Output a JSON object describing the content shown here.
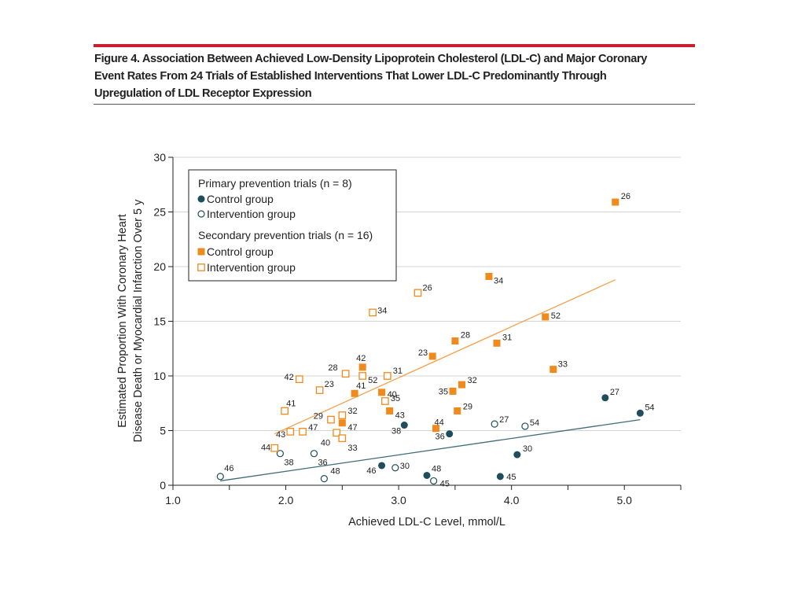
{
  "figure": {
    "caption_lines": [
      "Figure 4. Association Between Achieved Low-Density Lipoprotein Cholesterol (LDL-C) and Major Coronary",
      "Event Rates From 24 Trials of Established Interventions That Lower LDL-C Predominantly Through",
      "Upregulation of LDL Receptor Expression"
    ],
    "accent_color": "#c8202f"
  },
  "chart_data": {
    "type": "scatter",
    "xlabel": "Achieved LDL-C Level, mmol/L",
    "ylabel_lines": [
      "Estimated Proportion With Coronary Heart",
      "Disease Death or Myocardial Infarction Over 5 y"
    ],
    "xlim": [
      1.0,
      5.5
    ],
    "ylim": [
      0,
      30
    ],
    "x_ticks": [
      1.0,
      2.0,
      3.0,
      4.0,
      5.0
    ],
    "x_tick_labels": [
      "1.0",
      "2.0",
      "3.0",
      "4.0",
      "5.0"
    ],
    "y_ticks": [
      0,
      5,
      10,
      15,
      20,
      25,
      30
    ],
    "y_tick_labels": [
      "0",
      "5",
      "10",
      "15",
      "20",
      "25",
      "30"
    ],
    "grid": "horizontal",
    "legend": {
      "placement": "top-left",
      "groups": [
        {
          "title": "Primary prevention trials (n = 8)",
          "items": [
            "Control group",
            "Intervention group"
          ]
        },
        {
          "title": "Secondary prevention trials (n = 16)",
          "items": [
            "Control group",
            "Intervention group"
          ]
        }
      ]
    },
    "colors": {
      "primary": "#1e4e5c",
      "secondary": "#f08a1c",
      "primary_line": "#3d6b78",
      "secondary_line": "#f5a04a"
    },
    "series": [
      {
        "name": "Primary prevention trials - Control group",
        "marker": "filled-circle",
        "points": [
          {
            "x": 2.85,
            "y": 1.8,
            "label": "46"
          },
          {
            "x": 3.05,
            "y": 5.5,
            "label": "38"
          },
          {
            "x": 3.45,
            "y": 4.7,
            "label": "36"
          },
          {
            "x": 3.25,
            "y": 0.9,
            "label": "48"
          },
          {
            "x": 3.9,
            "y": 0.8,
            "label": "45"
          },
          {
            "x": 4.05,
            "y": 2.8,
            "label": "30"
          },
          {
            "x": 4.83,
            "y": 8.0,
            "label": "27"
          },
          {
            "x": 5.14,
            "y": 6.6,
            "label": "54"
          }
        ]
      },
      {
        "name": "Primary prevention trials - Intervention group",
        "marker": "open-circle",
        "points": [
          {
            "x": 1.42,
            "y": 0.8,
            "label": "46"
          },
          {
            "x": 1.95,
            "y": 2.9,
            "label": "38"
          },
          {
            "x": 2.25,
            "y": 2.9,
            "label": "36"
          },
          {
            "x": 2.34,
            "y": 0.6,
            "label": "48"
          },
          {
            "x": 2.97,
            "y": 1.6,
            "label": "30"
          },
          {
            "x": 3.31,
            "y": 0.4,
            "label": "45"
          },
          {
            "x": 3.85,
            "y": 5.6,
            "label": "27"
          },
          {
            "x": 4.12,
            "y": 5.4,
            "label": "54"
          }
        ]
      },
      {
        "name": "Secondary prevention trials - Control group",
        "marker": "filled-square",
        "points": [
          {
            "x": 4.92,
            "y": 25.9,
            "label": "26"
          },
          {
            "x": 3.8,
            "y": 19.1,
            "label": "34"
          },
          {
            "x": 4.3,
            "y": 15.4,
            "label": "52"
          },
          {
            "x": 3.5,
            "y": 13.2,
            "label": "28"
          },
          {
            "x": 3.87,
            "y": 13.0,
            "label": "31"
          },
          {
            "x": 3.3,
            "y": 11.8,
            "label": "23"
          },
          {
            "x": 2.68,
            "y": 10.8,
            "label": "42"
          },
          {
            "x": 4.37,
            "y": 10.6,
            "label": "33"
          },
          {
            "x": 3.56,
            "y": 9.2,
            "label": "32"
          },
          {
            "x": 3.48,
            "y": 8.6,
            "label": "35"
          },
          {
            "x": 2.85,
            "y": 8.5,
            "label": "40"
          },
          {
            "x": 2.61,
            "y": 8.4,
            "label": "41"
          },
          {
            "x": 2.92,
            "y": 6.8,
            "label": "43"
          },
          {
            "x": 3.52,
            "y": 6.8,
            "label": "29"
          },
          {
            "x": 2.5,
            "y": 5.7,
            "label": "47"
          },
          {
            "x": 3.33,
            "y": 5.2,
            "label": "44"
          }
        ]
      },
      {
        "name": "Secondary prevention trials - Intervention group",
        "marker": "open-square",
        "points": [
          {
            "x": 3.17,
            "y": 17.6,
            "label": "26"
          },
          {
            "x": 2.77,
            "y": 15.8,
            "label": "34"
          },
          {
            "x": 2.53,
            "y": 10.2,
            "label": "28"
          },
          {
            "x": 2.68,
            "y": 10.0,
            "label": "52"
          },
          {
            "x": 2.9,
            "y": 10.0,
            "label": "31"
          },
          {
            "x": 2.12,
            "y": 9.7,
            "label": "42"
          },
          {
            "x": 2.3,
            "y": 8.7,
            "label": "23"
          },
          {
            "x": 2.88,
            "y": 7.7,
            "label": "35"
          },
          {
            "x": 1.99,
            "y": 6.8,
            "label": "41"
          },
          {
            "x": 2.5,
            "y": 6.4,
            "label": "32"
          },
          {
            "x": 2.4,
            "y": 6.0,
            "label": "29"
          },
          {
            "x": 2.04,
            "y": 4.9,
            "label": "43"
          },
          {
            "x": 2.15,
            "y": 4.9,
            "label": "47"
          },
          {
            "x": 2.45,
            "y": 4.8,
            "label": "40"
          },
          {
            "x": 2.5,
            "y": 4.3,
            "label": "33"
          },
          {
            "x": 1.9,
            "y": 3.4,
            "label": "44"
          }
        ]
      }
    ],
    "trend_lines": [
      {
        "name": "Primary prevention trials",
        "x": [
          1.42,
          5.14
        ],
        "y": [
          0.4,
          6.0
        ]
      },
      {
        "name": "Secondary prevention trials",
        "x": [
          1.9,
          4.92
        ],
        "y": [
          4.7,
          18.8
        ]
      }
    ]
  }
}
